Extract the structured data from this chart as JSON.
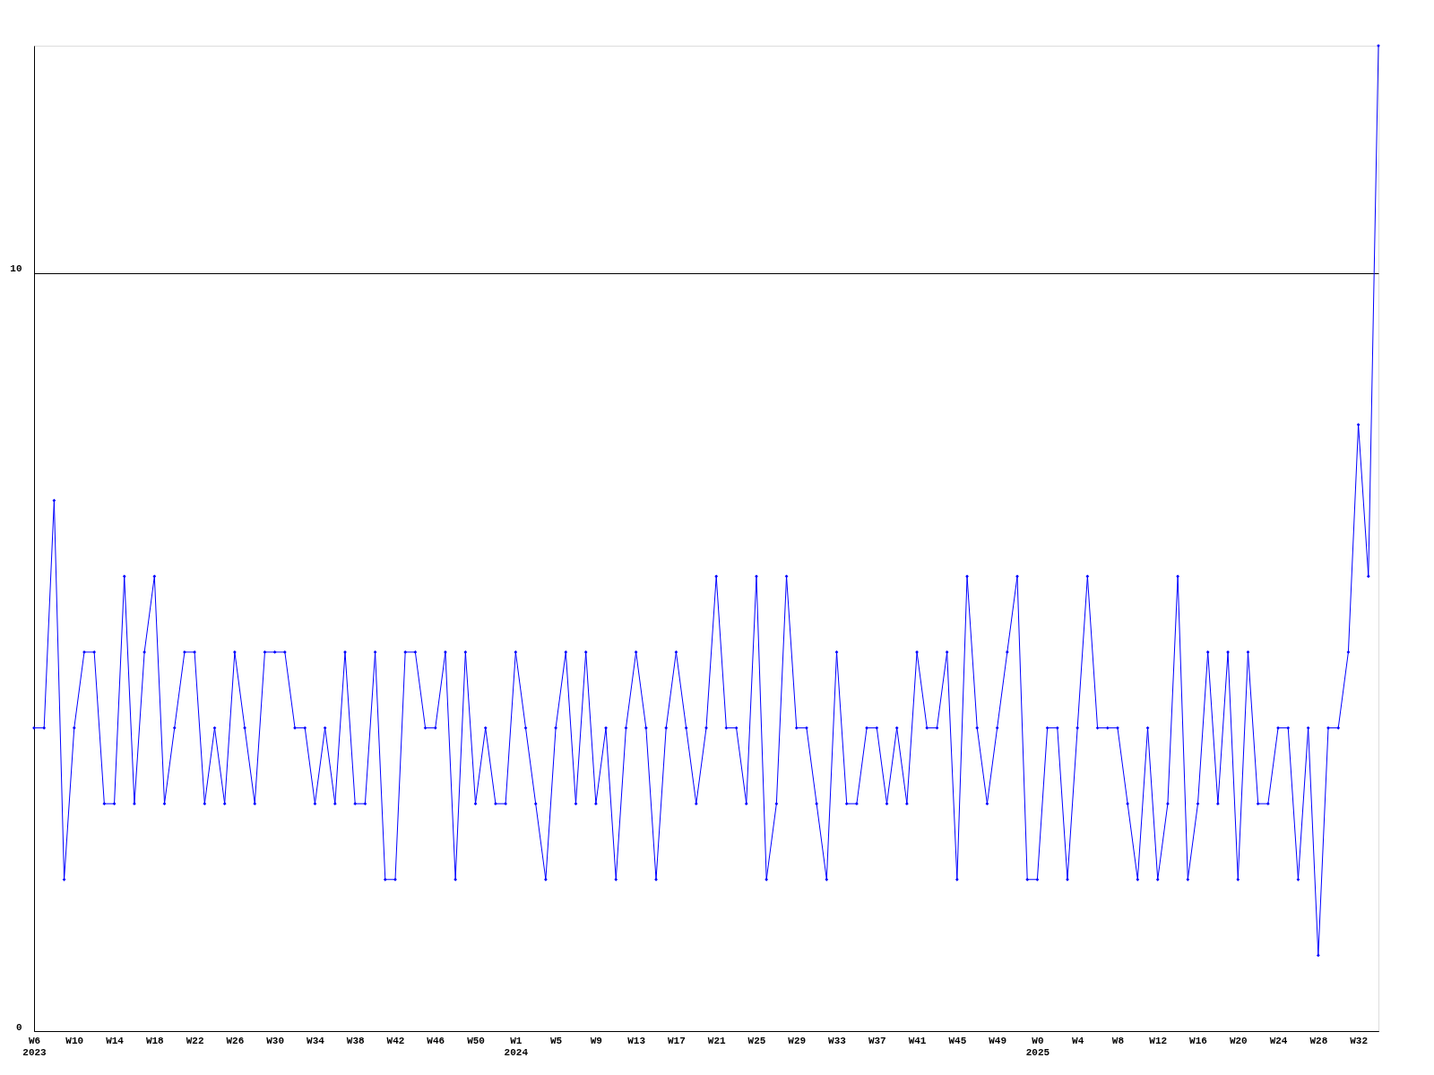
{
  "chart_data": {
    "type": "line",
    "categories": [
      "W6\n2023",
      null,
      null,
      null,
      "W10",
      null,
      null,
      null,
      "W14",
      null,
      null,
      null,
      "W18",
      null,
      null,
      null,
      "W22",
      null,
      null,
      null,
      "W26",
      null,
      null,
      null,
      "W30",
      null,
      null,
      null,
      "W34",
      null,
      null,
      null,
      "W38",
      null,
      null,
      null,
      "W42",
      null,
      null,
      null,
      "W46",
      null,
      null,
      null,
      "W50",
      null,
      null,
      null,
      "W1\n2024",
      null,
      null,
      null,
      "W5",
      null,
      null,
      null,
      "W9",
      null,
      null,
      null,
      "W13",
      null,
      null,
      null,
      "W17",
      null,
      null,
      null,
      "W21",
      null,
      null,
      null,
      "W25",
      null,
      null,
      null,
      "W29",
      null,
      null,
      null,
      "W33",
      null,
      null,
      null,
      "W37",
      null,
      null,
      null,
      "W41",
      null,
      null,
      null,
      "W45",
      null,
      null,
      null,
      "W49",
      null,
      null,
      null,
      "W0\n2025",
      null,
      null,
      null,
      "W4",
      null,
      null,
      null,
      "W8",
      null,
      null,
      null,
      "W12",
      null,
      null,
      null,
      "W16",
      null,
      null,
      null,
      "W20",
      null,
      null,
      null,
      "W24",
      null,
      null,
      null,
      "W28",
      null,
      null,
      null,
      "W32",
      null,
      null
    ],
    "series": [
      {
        "color": "#0000ff",
        "values": [
          4,
          4,
          7,
          2,
          4,
          5,
          5,
          3,
          3,
          6,
          3,
          5,
          6,
          3,
          4,
          5,
          5,
          3,
          4,
          3,
          5,
          4,
          3,
          5,
          5,
          5,
          4,
          4,
          3,
          4,
          3,
          5,
          3,
          3,
          5,
          2,
          2,
          5,
          5,
          4,
          4,
          5,
          2,
          5,
          3,
          4,
          3,
          3,
          5,
          4,
          3,
          2,
          4,
          5,
          3,
          5,
          3,
          4,
          2,
          4,
          5,
          4,
          2,
          4,
          5,
          4,
          3,
          4,
          6,
          4,
          4,
          3,
          6,
          2,
          3,
          6,
          4,
          4,
          3,
          2,
          5,
          3,
          3,
          4,
          4,
          3,
          4,
          3,
          5,
          4,
          4,
          5,
          2,
          6,
          4,
          3,
          4,
          5,
          6,
          2,
          2,
          4,
          4,
          2,
          4,
          6,
          4,
          4,
          4,
          3,
          2,
          4,
          2,
          3,
          6,
          2,
          3,
          5,
          3,
          5,
          2,
          5,
          3,
          3,
          4,
          4,
          2,
          4,
          1,
          4,
          4,
          5,
          8,
          6,
          13
        ]
      }
    ],
    "ylim": [
      0,
      13
    ],
    "yticks": [
      0,
      10
    ],
    "grid": "y",
    "marker": "diamond",
    "line_style": "solid",
    "legend": false
  }
}
